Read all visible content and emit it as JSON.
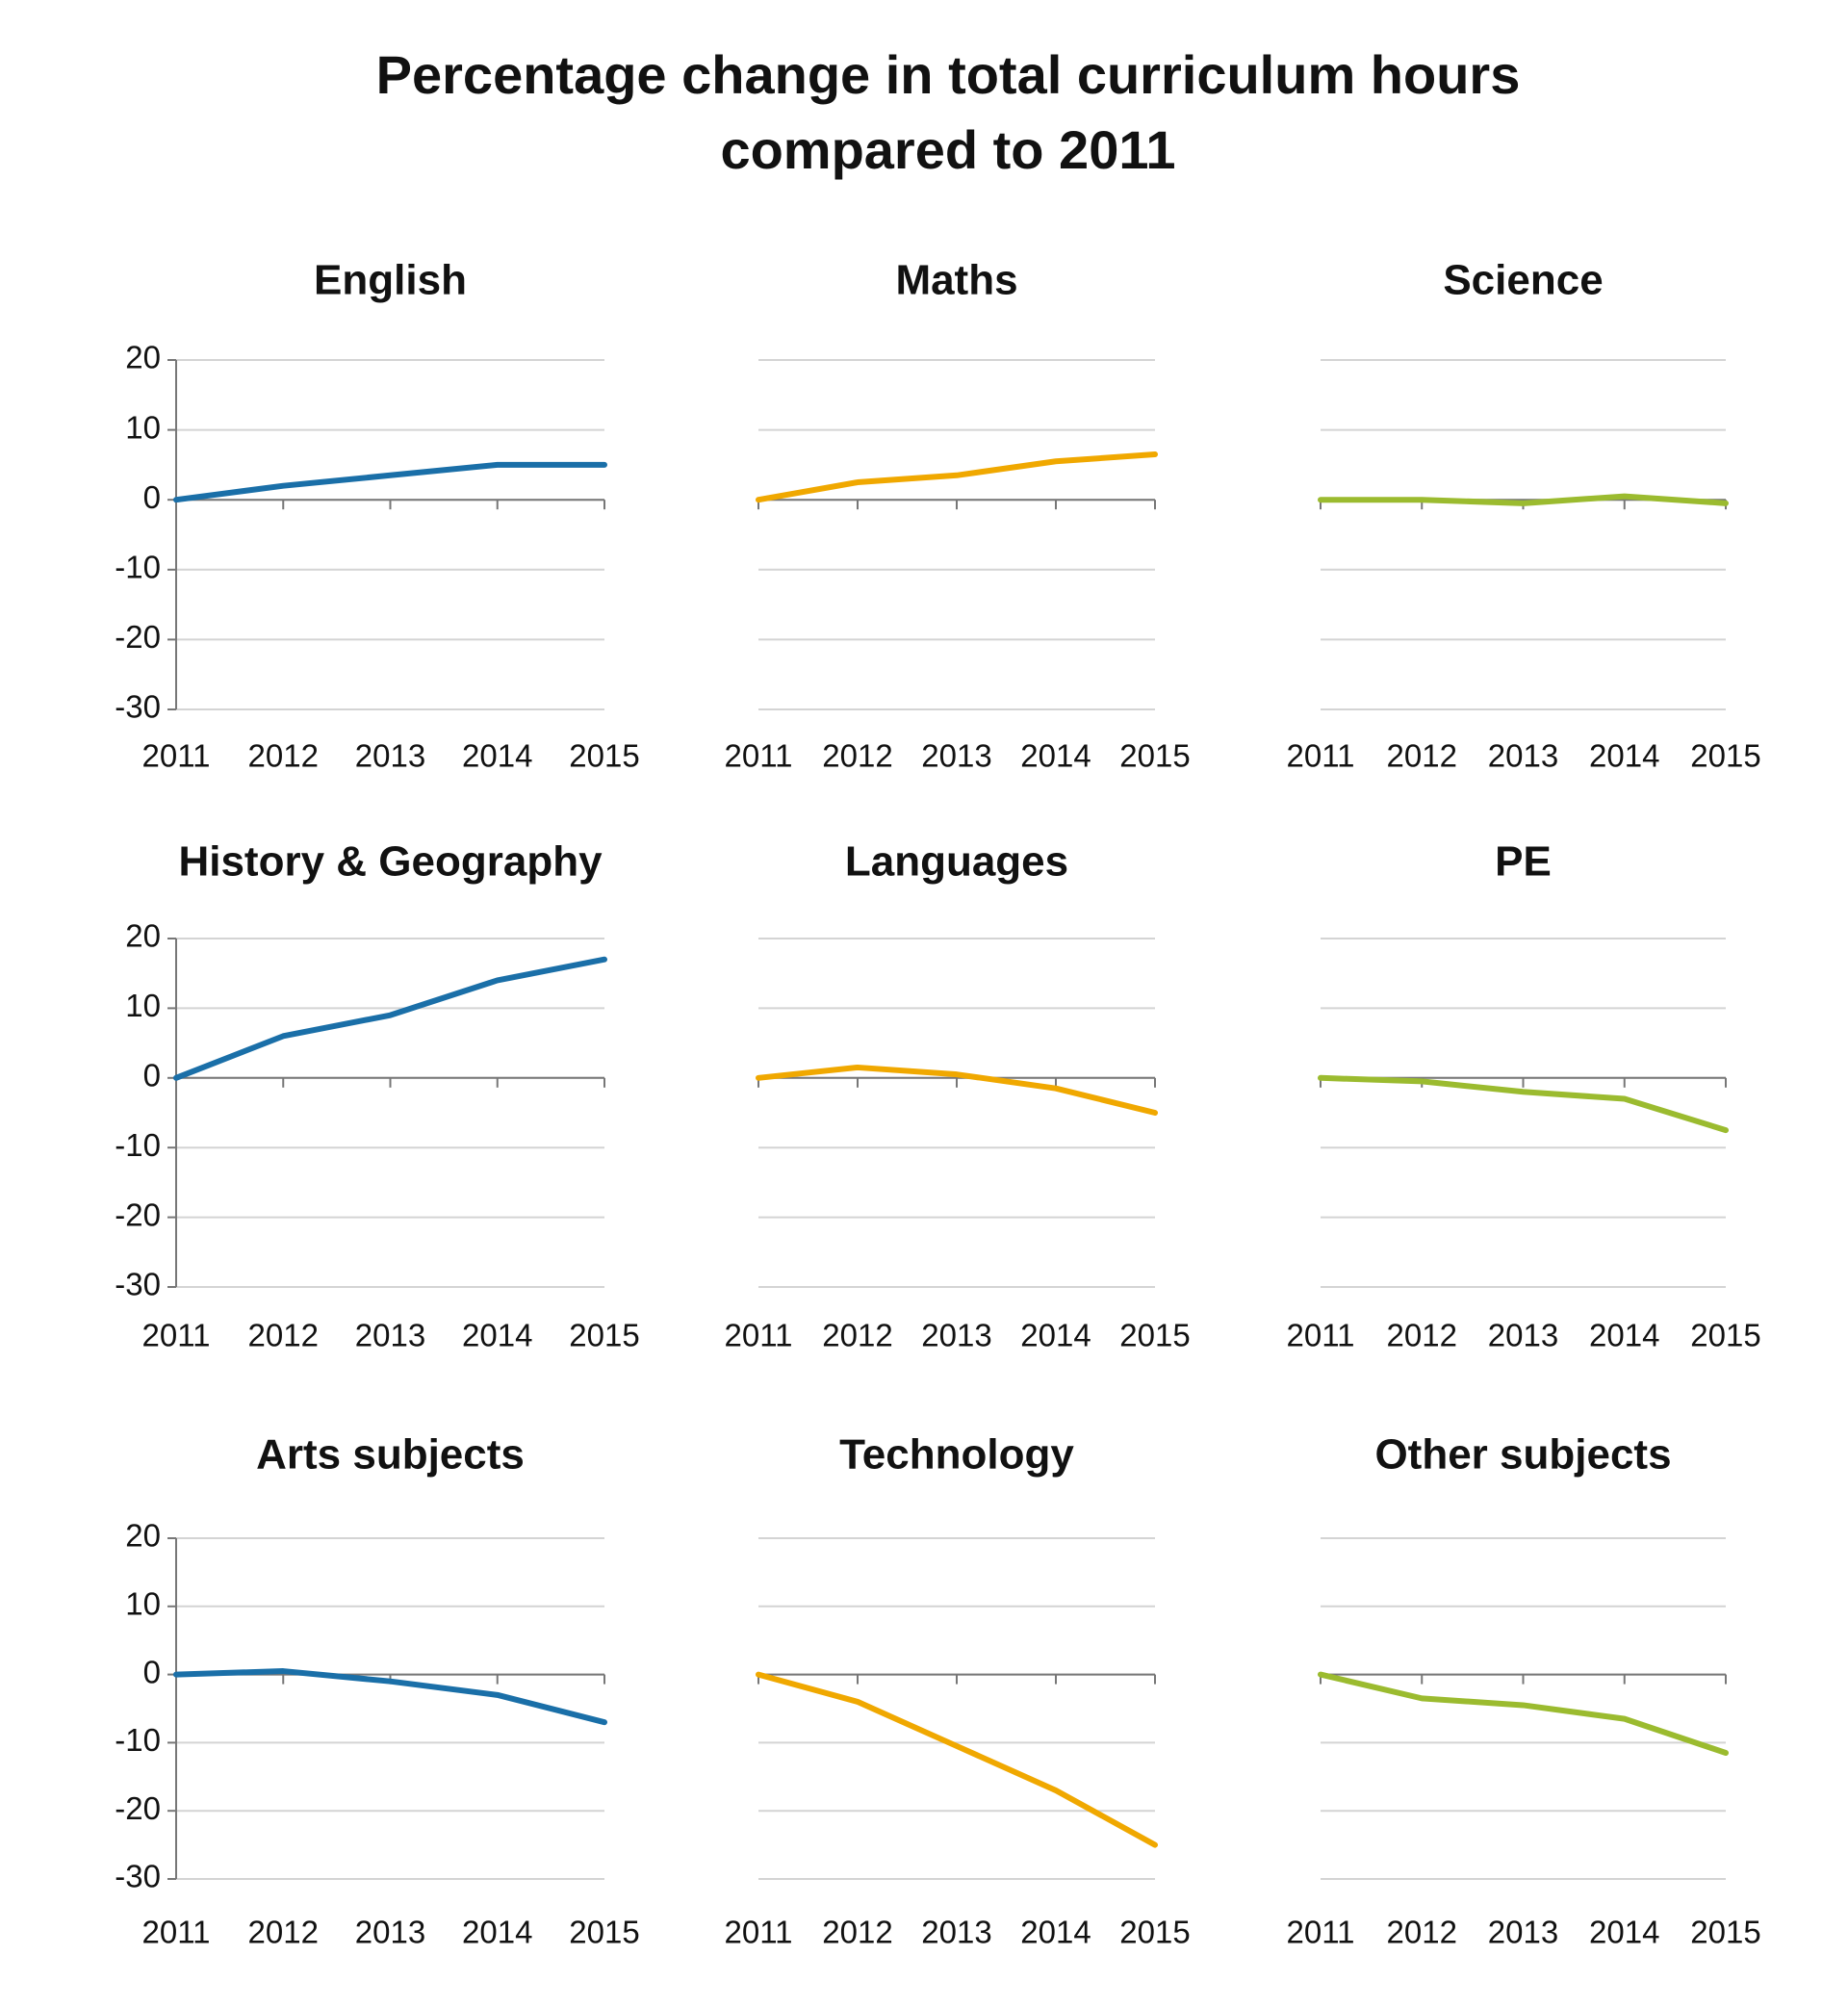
{
  "title": "Percentage change in total curriculum hours compared to 2011",
  "chart_data": [
    {
      "type": "line",
      "title": "English",
      "categories": [
        "2011",
        "2012",
        "2013",
        "2014",
        "2015"
      ],
      "values": [
        0,
        2,
        3.5,
        5,
        5
      ],
      "color": "#1a6fa8",
      "ylim": [
        -30,
        20
      ],
      "yticks": [
        20,
        10,
        0,
        -10,
        -20,
        -30
      ],
      "grid": true
    },
    {
      "type": "line",
      "title": "Maths",
      "categories": [
        "2011",
        "2012",
        "2013",
        "2014",
        "2015"
      ],
      "values": [
        0,
        2.5,
        3.5,
        5.5,
        6.5
      ],
      "color": "#f0a800",
      "ylim": [
        -30,
        20
      ],
      "yticks": [
        20,
        10,
        0,
        -10,
        -20,
        -30
      ],
      "grid": true
    },
    {
      "type": "line",
      "title": "Science",
      "categories": [
        "2011",
        "2012",
        "2013",
        "2014",
        "2015"
      ],
      "values": [
        0,
        0,
        -0.5,
        0.5,
        -0.5
      ],
      "color": "#9bbb2f",
      "ylim": [
        -30,
        20
      ],
      "yticks": [
        20,
        10,
        0,
        -10,
        -20,
        -30
      ],
      "grid": true
    },
    {
      "type": "line",
      "title": "History & Geography",
      "categories": [
        "2011",
        "2012",
        "2013",
        "2014",
        "2015"
      ],
      "values": [
        0,
        6,
        9,
        14,
        17
      ],
      "color": "#1a6fa8",
      "ylim": [
        -30,
        20
      ],
      "yticks": [
        20,
        10,
        0,
        -10,
        -20,
        -30
      ],
      "grid": true
    },
    {
      "type": "line",
      "title": "Languages",
      "categories": [
        "2011",
        "2012",
        "2013",
        "2014",
        "2015"
      ],
      "values": [
        0,
        1.5,
        0.5,
        -1.5,
        -5
      ],
      "color": "#f0a800",
      "ylim": [
        -30,
        20
      ],
      "yticks": [
        20,
        10,
        0,
        -10,
        -20,
        -30
      ],
      "grid": true
    },
    {
      "type": "line",
      "title": "PE",
      "categories": [
        "2011",
        "2012",
        "2013",
        "2014",
        "2015"
      ],
      "values": [
        0,
        -0.5,
        -2,
        -3,
        -7.5
      ],
      "color": "#9bbb2f",
      "ylim": [
        -30,
        20
      ],
      "yticks": [
        20,
        10,
        0,
        -10,
        -20,
        -30
      ],
      "grid": true
    },
    {
      "type": "line",
      "title": "Arts subjects",
      "categories": [
        "2011",
        "2012",
        "2013",
        "2014",
        "2015"
      ],
      "values": [
        0,
        0.5,
        -1,
        -3,
        -7
      ],
      "color": "#1a6fa8",
      "ylim": [
        -30,
        20
      ],
      "yticks": [
        20,
        10,
        0,
        -10,
        -20,
        -30
      ],
      "grid": true
    },
    {
      "type": "line",
      "title": "Technology",
      "categories": [
        "2011",
        "2012",
        "2013",
        "2014",
        "2015"
      ],
      "values": [
        0,
        -4,
        -10.5,
        -17,
        -25
      ],
      "color": "#f0a800",
      "ylim": [
        -30,
        20
      ],
      "yticks": [
        20,
        10,
        0,
        -10,
        -20,
        -30
      ],
      "grid": true
    },
    {
      "type": "line",
      "title": "Other subjects",
      "categories": [
        "2011",
        "2012",
        "2013",
        "2014",
        "2015"
      ],
      "values": [
        0,
        -3.5,
        -4.5,
        -6.5,
        -11.5
      ],
      "color": "#9bbb2f",
      "ylim": [
        -30,
        20
      ],
      "yticks": [
        20,
        10,
        0,
        -10,
        -20,
        -30
      ],
      "grid": true
    }
  ]
}
